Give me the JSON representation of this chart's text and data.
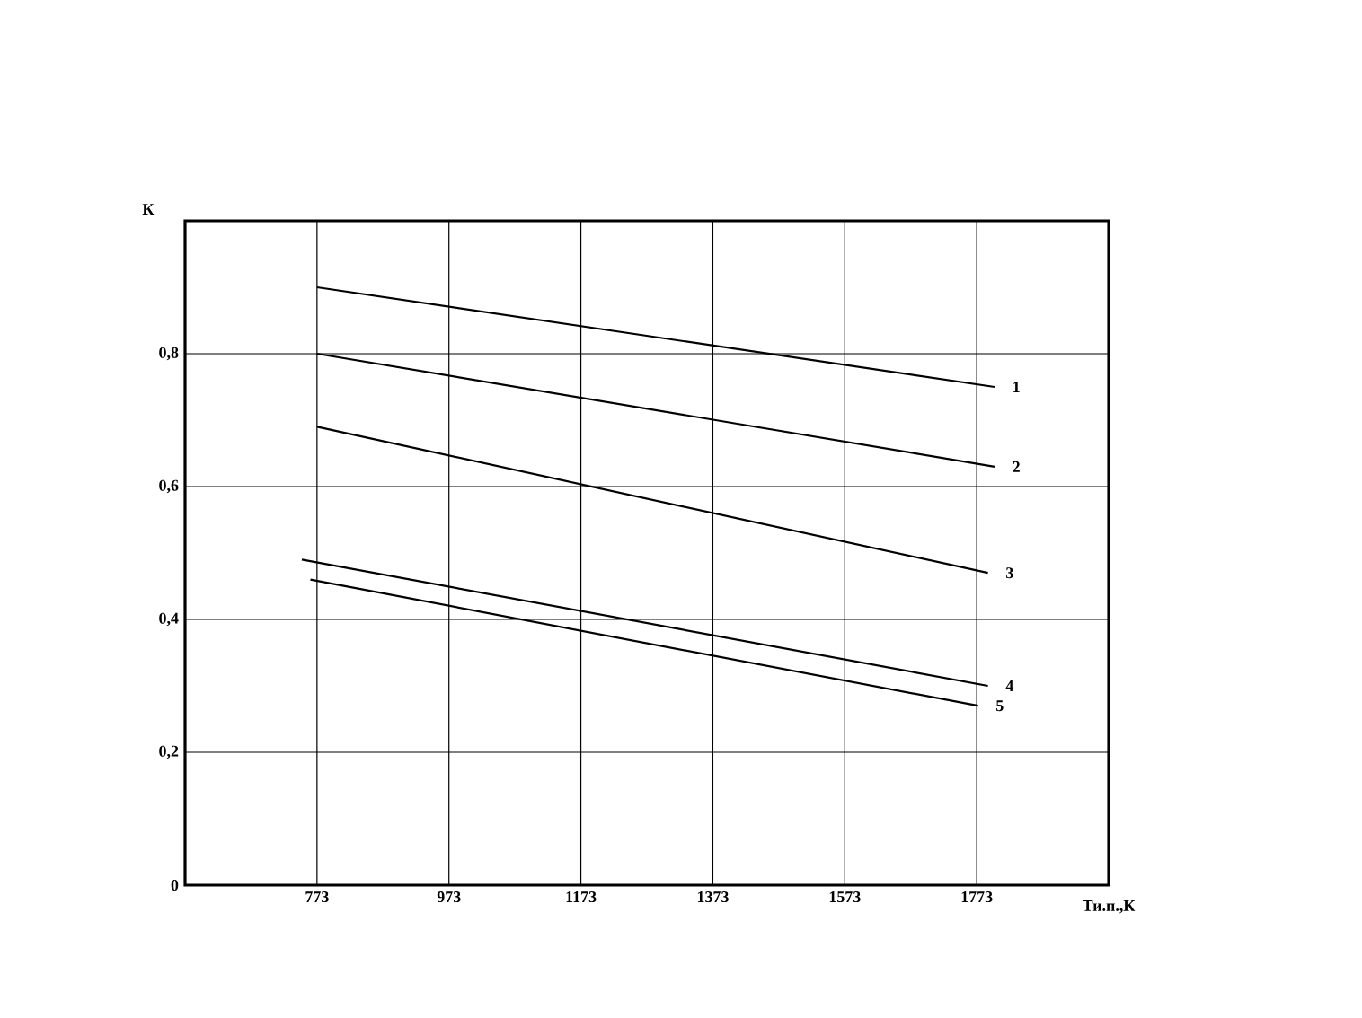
{
  "chart_data": {
    "type": "line",
    "xlabel": "Ти.п.,К",
    "ylabel": "К",
    "xlim": [
      573,
      1973
    ],
    "ylim": [
      0,
      1.0
    ],
    "xticks": [
      773,
      973,
      1173,
      1373,
      1573,
      1773
    ],
    "yticks": [
      0,
      {
        "value": 0.2,
        "label": "0,2"
      },
      {
        "value": 0.4,
        "label": "0,4"
      },
      {
        "value": 0.6,
        "label": "0,6"
      },
      {
        "value": 0.8,
        "label": "0,8"
      }
    ],
    "grid": true,
    "line_style": "solid",
    "series": [
      {
        "name": "1",
        "color": "#000000",
        "x": [
          773,
          1800
        ],
        "values": [
          0.9,
          0.75
        ]
      },
      {
        "name": "2",
        "color": "#000000",
        "x": [
          773,
          1800
        ],
        "values": [
          0.8,
          0.63
        ]
      },
      {
        "name": "3",
        "color": "#000000",
        "x": [
          773,
          1790
        ],
        "values": [
          0.69,
          0.47
        ]
      },
      {
        "name": "4",
        "color": "#000000",
        "x": [
          750,
          1790
        ],
        "values": [
          0.49,
          0.3
        ]
      },
      {
        "name": "5",
        "color": "#000000",
        "x": [
          763,
          1775
        ],
        "values": [
          0.46,
          0.27
        ]
      }
    ]
  }
}
